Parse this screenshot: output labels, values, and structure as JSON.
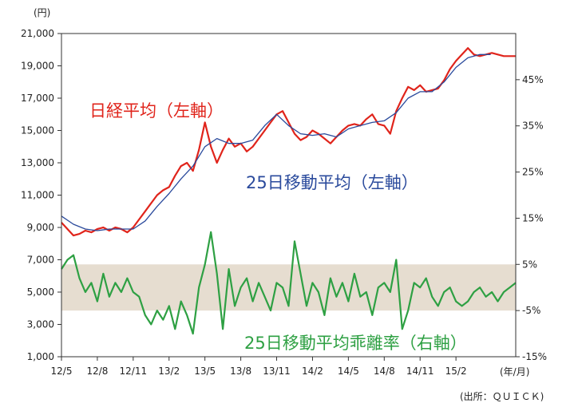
{
  "chart_data": {
    "type": "line",
    "left_axis": {
      "unit_label": "(円)",
      "min": 1000,
      "max": 21000,
      "ticks": [
        1000,
        3000,
        5000,
        7000,
        9000,
        11000,
        13000,
        15000,
        17000,
        19000,
        21000
      ],
      "tick_labels": [
        "1,000",
        "3,000",
        "5,000",
        "7,000",
        "9,000",
        "11,000",
        "13,000",
        "15,000",
        "17,000",
        "19,000",
        "21,000"
      ]
    },
    "right_axis": {
      "min": -15,
      "max": 55,
      "ticks": [
        -15,
        -5,
        5,
        15,
        25,
        35,
        45
      ],
      "tick_labels": [
        "-15%",
        "-5%",
        "5%",
        "15%",
        "25%",
        "35%",
        "45%"
      ]
    },
    "x_axis": {
      "unit_label": "(年/月)",
      "start_month": 0,
      "end_month": 38,
      "ticks": [
        0,
        3,
        6,
        9,
        12,
        15,
        18,
        21,
        24,
        27,
        30,
        33
      ],
      "tick_labels": [
        "12/5",
        "12/8",
        "12/11",
        "13/2",
        "13/5",
        "13/8",
        "13/11",
        "14/2",
        "14/5",
        "14/8",
        "14/11",
        "15/2"
      ]
    },
    "band": {
      "from_pct": -5,
      "to_pct": 5,
      "color": "#e6ddd0"
    },
    "colors": {
      "nikkei": "#e0241b",
      "ma25": "#2a4a9c",
      "deviation": "#2ea043"
    },
    "annotations": {
      "nikkei": "日経平均（左軸）",
      "ma25": "25日移動平均（左軸）",
      "deviation": "25日移動平均乖離率（右軸）"
    },
    "source": "(出所：ＱＵＩＣＫ)",
    "series": [
      {
        "name": "日経平均",
        "axis": "left",
        "x": [
          0,
          0.5,
          1,
          1.5,
          2,
          2.5,
          3,
          3.5,
          4,
          4.5,
          5,
          5.5,
          6,
          6.5,
          7,
          7.5,
          8,
          8.5,
          9,
          9.5,
          10,
          10.5,
          11,
          11.5,
          12,
          12.5,
          13,
          13.5,
          14,
          14.5,
          15,
          15.5,
          16,
          16.5,
          17,
          17.5,
          18,
          18.5,
          19,
          19.5,
          20,
          20.5,
          21,
          21.5,
          22,
          22.5,
          23,
          23.5,
          24,
          24.5,
          25,
          25.5,
          26,
          26.5,
          27,
          27.5,
          28,
          28.5,
          29,
          29.5,
          30,
          30.5,
          31,
          31.5,
          32,
          32.5,
          33,
          33.5,
          34,
          34.5,
          35,
          35.5,
          36,
          36.5,
          37,
          37.5,
          38
        ],
        "values": [
          9300,
          8900,
          8500,
          8600,
          8800,
          8700,
          8900,
          9000,
          8800,
          9000,
          8900,
          8700,
          9000,
          9500,
          10000,
          10500,
          11000,
          11300,
          11500,
          12200,
          12800,
          13000,
          12500,
          13800,
          15500,
          14000,
          13000,
          13800,
          14500,
          14000,
          14200,
          13700,
          14000,
          14500,
          15000,
          15500,
          16000,
          16200,
          15500,
          14800,
          14400,
          14600,
          15000,
          14800,
          14500,
          14200,
          14600,
          15000,
          15300,
          15400,
          15300,
          15700,
          16000,
          15400,
          15300,
          14800,
          16200,
          17000,
          17700,
          17500,
          17800,
          17400,
          17500,
          17600,
          18100,
          18800,
          19300,
          19700,
          20100,
          19700,
          19600,
          19700,
          19800,
          19700,
          19600,
          19600,
          19600
        ]
      },
      {
        "name": "25日移動平均",
        "axis": "left",
        "x": [
          0,
          1,
          2,
          3,
          4,
          5,
          6,
          7,
          8,
          9,
          10,
          11,
          12,
          13,
          14,
          15,
          16,
          17,
          18,
          19,
          20,
          21,
          22,
          23,
          24,
          25,
          26,
          27,
          28,
          29,
          30,
          31,
          32,
          33,
          34,
          35,
          35.9
        ],
        "values": [
          9700,
          9200,
          8900,
          8800,
          8900,
          8900,
          8900,
          9400,
          10300,
          11100,
          12000,
          12800,
          14000,
          14500,
          14200,
          14200,
          14400,
          15300,
          16000,
          15300,
          14800,
          14700,
          14800,
          14600,
          15100,
          15300,
          15500,
          15600,
          16100,
          17000,
          17400,
          17400,
          18000,
          18900,
          19500,
          19700,
          19700
        ]
      },
      {
        "name": "25日移動平均乖離率",
        "axis": "right",
        "x": [
          0,
          0.5,
          1,
          1.5,
          2,
          2.5,
          3,
          3.5,
          4,
          4.5,
          5,
          5.5,
          6,
          6.5,
          7,
          7.5,
          8,
          8.5,
          9,
          9.5,
          10,
          10.5,
          11,
          11.5,
          12,
          12.5,
          13,
          13.5,
          14,
          14.5,
          15,
          15.5,
          16,
          16.5,
          17,
          17.5,
          18,
          18.5,
          19,
          19.5,
          20,
          20.5,
          21,
          21.5,
          22,
          22.5,
          23,
          23.5,
          24,
          24.5,
          25,
          25.5,
          26,
          26.5,
          27,
          27.5,
          28,
          28.5,
          29,
          29.5,
          30,
          30.5,
          31,
          31.5,
          32,
          32.5,
          33,
          33.5,
          34,
          34.5,
          35,
          35.5,
          36,
          36.5,
          37,
          37.5,
          38
        ],
        "values": [
          4,
          6,
          7,
          2,
          -1,
          1,
          -3,
          3,
          -2,
          1,
          -1,
          2,
          -1,
          -2,
          -6,
          -8,
          -5,
          -7,
          -4,
          -9,
          -3,
          -6,
          -10,
          0,
          5,
          12,
          3,
          -9,
          4,
          -4,
          0,
          2,
          -3,
          1,
          -2,
          -5,
          1,
          0,
          -4,
          10,
          3,
          -4,
          1,
          -1,
          -6,
          2,
          -2,
          1,
          -3,
          3,
          -2,
          -1,
          -6,
          0,
          1,
          -1,
          6,
          -9,
          -5,
          1,
          0,
          2,
          -2,
          -4,
          -1,
          0,
          -3,
          -4,
          -3,
          -1,
          0,
          -2,
          -1,
          -3,
          -1,
          0,
          1
        ]
      }
    ]
  }
}
